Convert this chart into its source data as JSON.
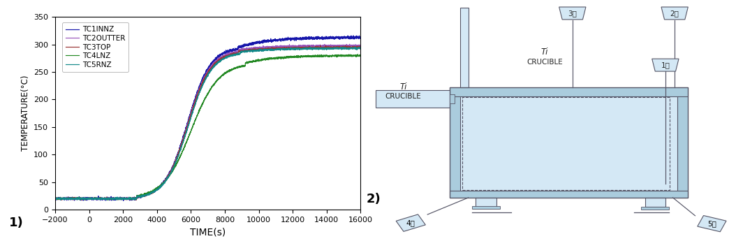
{
  "panel1_label": "1)",
  "panel2_label": "2)",
  "xlabel": "TIME(s)",
  "ylabel": "TEMPERATURE(°C)",
  "xlim": [
    -2000,
    16000
  ],
  "ylim": [
    0,
    350
  ],
  "xticks": [
    -2000,
    0,
    2000,
    4000,
    6000,
    8000,
    10000,
    12000,
    14000,
    16000
  ],
  "yticks": [
    0,
    50,
    100,
    150,
    200,
    250,
    300,
    350
  ],
  "series": [
    {
      "label": "TC1INNZ",
      "color": "#1515aa"
    },
    {
      "label": "TC2OUTTER",
      "color": "#9955bb"
    },
    {
      "label": "TC3TOP",
      "color": "#993333"
    },
    {
      "label": "TC4LNZ",
      "color": "#228822"
    },
    {
      "label": "TC5RNZ",
      "color": "#118888"
    }
  ],
  "bg_color": "#ffffff",
  "lc": "#d4e8f5",
  "mc": "#aaccdd",
  "dc": "#7aaabb",
  "line_color": "#555566"
}
